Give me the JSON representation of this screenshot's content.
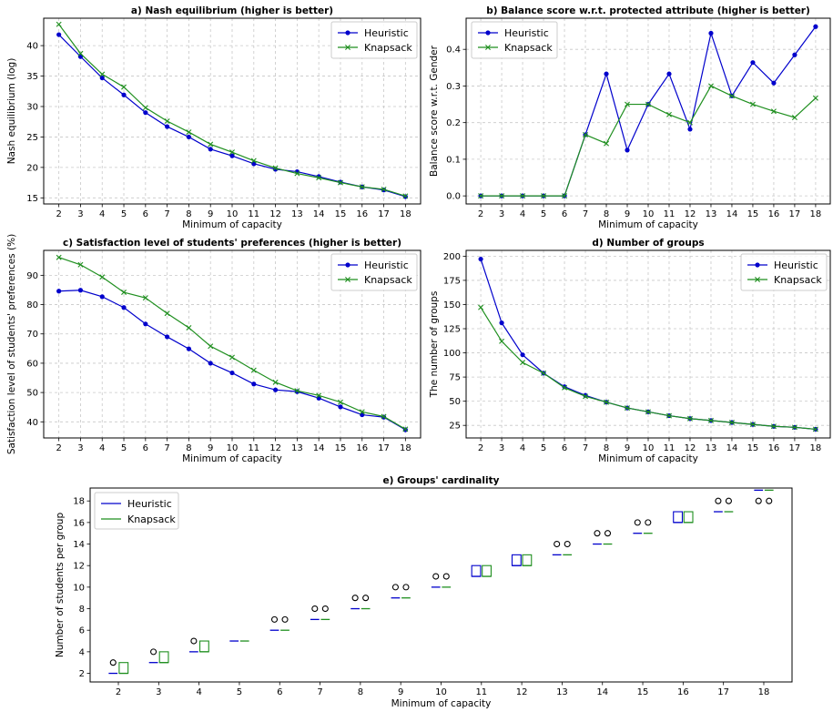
{
  "chart_data": [
    {
      "id": "a",
      "type": "line",
      "title": "a) Nash equilibrium (higher is better)",
      "xlabel": "Minimum of capacity",
      "ylabel": "Nash equilibrium (log)",
      "x": [
        2,
        3,
        4,
        5,
        6,
        7,
        8,
        9,
        10,
        11,
        12,
        13,
        14,
        15,
        16,
        17,
        18
      ],
      "xlim": [
        1.3,
        18.7
      ],
      "ylim": [
        14,
        44.5
      ],
      "yticks": [
        15,
        20,
        25,
        30,
        35,
        40
      ],
      "grid": true,
      "legend": "upper right",
      "series": [
        {
          "name": "Heuristic",
          "color": "#0000cc",
          "marker": "circle",
          "values": [
            41.8,
            38.2,
            34.7,
            31.9,
            29.0,
            26.7,
            25.0,
            23.0,
            21.9,
            20.6,
            19.7,
            19.3,
            18.5,
            17.6,
            16.8,
            16.3,
            15.2
          ]
        },
        {
          "name": "Knapsack",
          "color": "#1f8f1f",
          "marker": "x",
          "values": [
            43.5,
            38.7,
            35.3,
            33.2,
            29.8,
            27.6,
            25.8,
            23.8,
            22.5,
            21.1,
            19.9,
            19.0,
            18.3,
            17.5,
            16.8,
            16.4,
            15.3
          ]
        }
      ]
    },
    {
      "id": "b",
      "type": "line",
      "title": "b) Balance score w.r.t. protected attribute (higher is better)",
      "xlabel": "Minimum of capacity",
      "ylabel": "Balance score w.r.t. Gender",
      "x": [
        2,
        3,
        4,
        5,
        6,
        7,
        8,
        9,
        10,
        11,
        12,
        13,
        14,
        15,
        16,
        17,
        18
      ],
      "xlim": [
        1.3,
        18.7
      ],
      "ylim": [
        -0.022,
        0.485
      ],
      "yticks": [
        0.0,
        0.1,
        0.2,
        0.3,
        0.4
      ],
      "ytick_labels": [
        "0.0",
        "0.1",
        "0.2",
        "0.3",
        "0.4"
      ],
      "grid": true,
      "legend": "upper left",
      "series": [
        {
          "name": "Heuristic",
          "color": "#0000cc",
          "marker": "circle",
          "values": [
            0,
            0,
            0,
            0,
            0,
            0.167,
            0.333,
            0.125,
            0.25,
            0.333,
            0.182,
            0.444,
            0.273,
            0.364,
            0.308,
            0.385,
            0.462
          ]
        },
        {
          "name": "Knapsack",
          "color": "#1f8f1f",
          "marker": "x",
          "values": [
            0,
            0,
            0,
            0,
            0,
            0.167,
            0.143,
            0.25,
            0.25,
            0.222,
            0.2,
            0.3,
            0.273,
            0.25,
            0.231,
            0.214,
            0.267
          ]
        }
      ]
    },
    {
      "id": "c",
      "type": "line",
      "title": "c) Satisfaction level of students' preferences (higher is better)",
      "xlabel": "Minimum of capacity",
      "ylabel": "Satisfaction level of students' preferences (%)",
      "x": [
        2,
        3,
        4,
        5,
        6,
        7,
        8,
        9,
        10,
        11,
        12,
        13,
        14,
        15,
        16,
        17,
        18
      ],
      "xlim": [
        1.3,
        18.7
      ],
      "ylim": [
        34.5,
        98.5
      ],
      "yticks": [
        40,
        50,
        60,
        70,
        80,
        90
      ],
      "grid": true,
      "legend": "upper right",
      "series": [
        {
          "name": "Heuristic",
          "color": "#0000cc",
          "marker": "circle",
          "values": [
            84.6,
            84.9,
            82.7,
            79.0,
            73.4,
            69.0,
            64.9,
            60.0,
            56.7,
            52.9,
            50.9,
            50.3,
            48.1,
            45.1,
            42.4,
            41.6,
            37.3
          ]
        },
        {
          "name": "Knapsack",
          "color": "#1f8f1f",
          "marker": "x",
          "values": [
            96.1,
            93.6,
            89.4,
            84.2,
            82.3,
            77.0,
            72.1,
            65.8,
            62.0,
            57.6,
            53.5,
            50.6,
            49.0,
            46.7,
            43.4,
            41.8,
            37.5
          ]
        }
      ]
    },
    {
      "id": "d",
      "type": "line",
      "title": "d) Number of groups",
      "xlabel": "Minimum of capacity",
      "ylabel": "The number of groups",
      "x": [
        2,
        3,
        4,
        5,
        6,
        7,
        8,
        9,
        10,
        11,
        12,
        13,
        14,
        15,
        16,
        17,
        18
      ],
      "xlim": [
        1.3,
        18.7
      ],
      "ylim": [
        12,
        206
      ],
      "yticks": [
        25,
        50,
        75,
        100,
        125,
        150,
        175,
        200
      ],
      "grid": true,
      "legend": "upper right",
      "series": [
        {
          "name": "Heuristic",
          "color": "#0000cc",
          "marker": "circle",
          "values": [
            197,
            131,
            98,
            79,
            65,
            56,
            49,
            43,
            39,
            35,
            32,
            30,
            28,
            26,
            24,
            23,
            21
          ]
        },
        {
          "name": "Knapsack",
          "color": "#1f8f1f",
          "marker": "x",
          "values": [
            147,
            112,
            90,
            79,
            64,
            55,
            49,
            43,
            39,
            35,
            32,
            30,
            28,
            26,
            24,
            23,
            21
          ]
        }
      ]
    },
    {
      "id": "e",
      "type": "box",
      "title": "e) Groups' cardinality",
      "xlabel": "Minimum of capacity",
      "ylabel": "Number of students per group",
      "categories": [
        "2",
        "3",
        "4",
        "5",
        "6",
        "7",
        "8",
        "9",
        "10",
        "11",
        "12",
        "13",
        "14",
        "15",
        "16",
        "17",
        "18"
      ],
      "ylim": [
        1.2,
        19.2
      ],
      "yticks": [
        2,
        4,
        6,
        8,
        10,
        12,
        14,
        16,
        18
      ],
      "grid": false,
      "legend": "upper left",
      "series": [
        {
          "name": "Heuristic",
          "color": "#0000cc",
          "boxes": [
            [
              2,
              2,
              2
            ],
            [
              3,
              3,
              3
            ],
            [
              4,
              4,
              4
            ],
            [
              5,
              5,
              5
            ],
            [
              6,
              6,
              6
            ],
            [
              7,
              7,
              7
            ],
            [
              8,
              8,
              8
            ],
            [
              9,
              9,
              9
            ],
            [
              10,
              10,
              10
            ],
            [
              11,
              11,
              12
            ],
            [
              12,
              12,
              13
            ],
            [
              13,
              13,
              13
            ],
            [
              14,
              14,
              14
            ],
            [
              15,
              15,
              15
            ],
            [
              16,
              16,
              17
            ],
            [
              17,
              17,
              17
            ],
            [
              19,
              19,
              19
            ]
          ],
          "fliers": [
            [
              3
            ],
            [
              4
            ],
            [
              5
            ],
            [],
            [
              7
            ],
            [
              8
            ],
            [
              9
            ],
            [
              10
            ],
            [
              11
            ],
            [],
            [],
            [
              14
            ],
            [
              15
            ],
            [
              16
            ],
            [],
            [
              18
            ],
            [
              18
            ]
          ]
        },
        {
          "name": "Knapsack",
          "color": "#1f8f1f",
          "boxes": [
            [
              2,
              2,
              3
            ],
            [
              3,
              3,
              4
            ],
            [
              4,
              4,
              5
            ],
            [
              5,
              5,
              5
            ],
            [
              6,
              6,
              6
            ],
            [
              7,
              7,
              7
            ],
            [
              8,
              8,
              8
            ],
            [
              9,
              9,
              9
            ],
            [
              10,
              10,
              10
            ],
            [
              11,
              11,
              12
            ],
            [
              12,
              12,
              13
            ],
            [
              13,
              13,
              13
            ],
            [
              14,
              14,
              14
            ],
            [
              15,
              15,
              15
            ],
            [
              16,
              16,
              17
            ],
            [
              17,
              17,
              17
            ],
            [
              19,
              19,
              19
            ]
          ],
          "fliers": [
            [],
            [],
            [],
            [],
            [
              7
            ],
            [
              8
            ],
            [
              9
            ],
            [
              10
            ],
            [
              11
            ],
            [],
            [],
            [
              14
            ],
            [
              15
            ],
            [
              16
            ],
            [],
            [
              18
            ],
            [
              18
            ]
          ]
        }
      ]
    }
  ]
}
